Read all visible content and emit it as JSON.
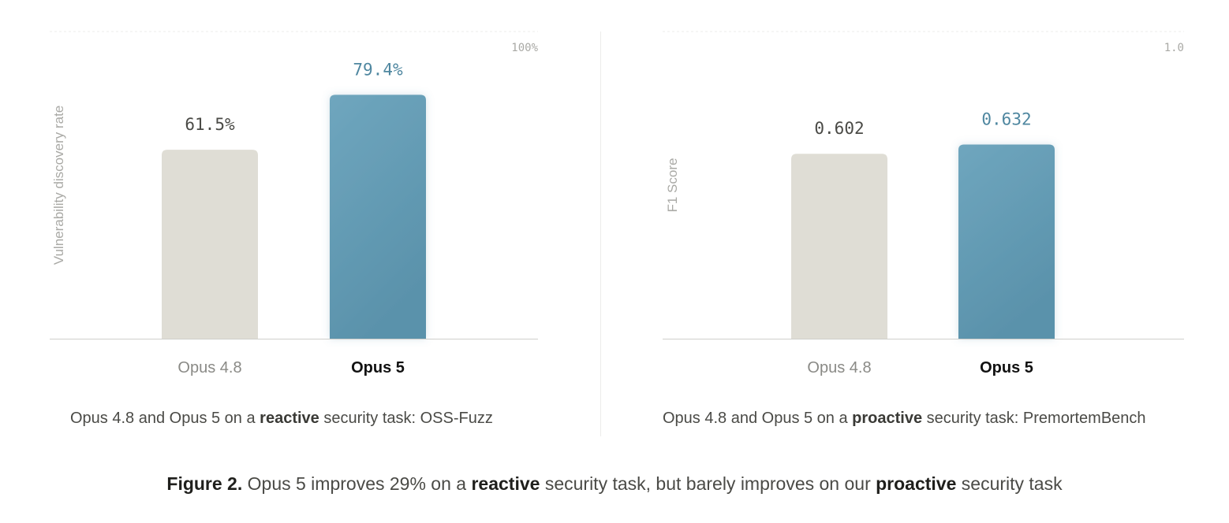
{
  "chart_data": [
    {
      "type": "bar",
      "categories": [
        "Opus 4.8",
        "Opus 5"
      ],
      "values": [
        61.5,
        79.4
      ],
      "value_labels": [
        "61.5%",
        "79.4%"
      ],
      "ylabel": "Vulnerability discovery rate",
      "ylim": [
        0,
        100
      ],
      "ymax_label": "100%",
      "grid": false,
      "colors": [
        "#dfddd5",
        "#5a92ab"
      ],
      "caption": {
        "prefix": "Opus 4.8 and Opus 5 on a ",
        "emphasis": "reactive",
        "suffix": " security task: OSS-Fuzz"
      }
    },
    {
      "type": "bar",
      "categories": [
        "Opus 4.8",
        "Opus 5"
      ],
      "values": [
        0.602,
        0.632
      ],
      "value_labels": [
        "0.602",
        "0.632"
      ],
      "ylabel": "F1 Score",
      "ylim": [
        0,
        1.0
      ],
      "ymax_label": "1.0",
      "grid": false,
      "colors": [
        "#dfddd5",
        "#5a92ab"
      ],
      "caption": {
        "prefix": "Opus 4.8 and Opus 5 on a ",
        "emphasis": "proactive",
        "suffix": " security task: PremortemBench"
      }
    }
  ],
  "figure_caption": {
    "label": "Figure 2.",
    "part1": " Opus 5 improves 29% on a ",
    "emphasis1": "reactive",
    "part2": " security task, but barely improves on our ",
    "emphasis2": "proactive",
    "part3": " security task"
  }
}
